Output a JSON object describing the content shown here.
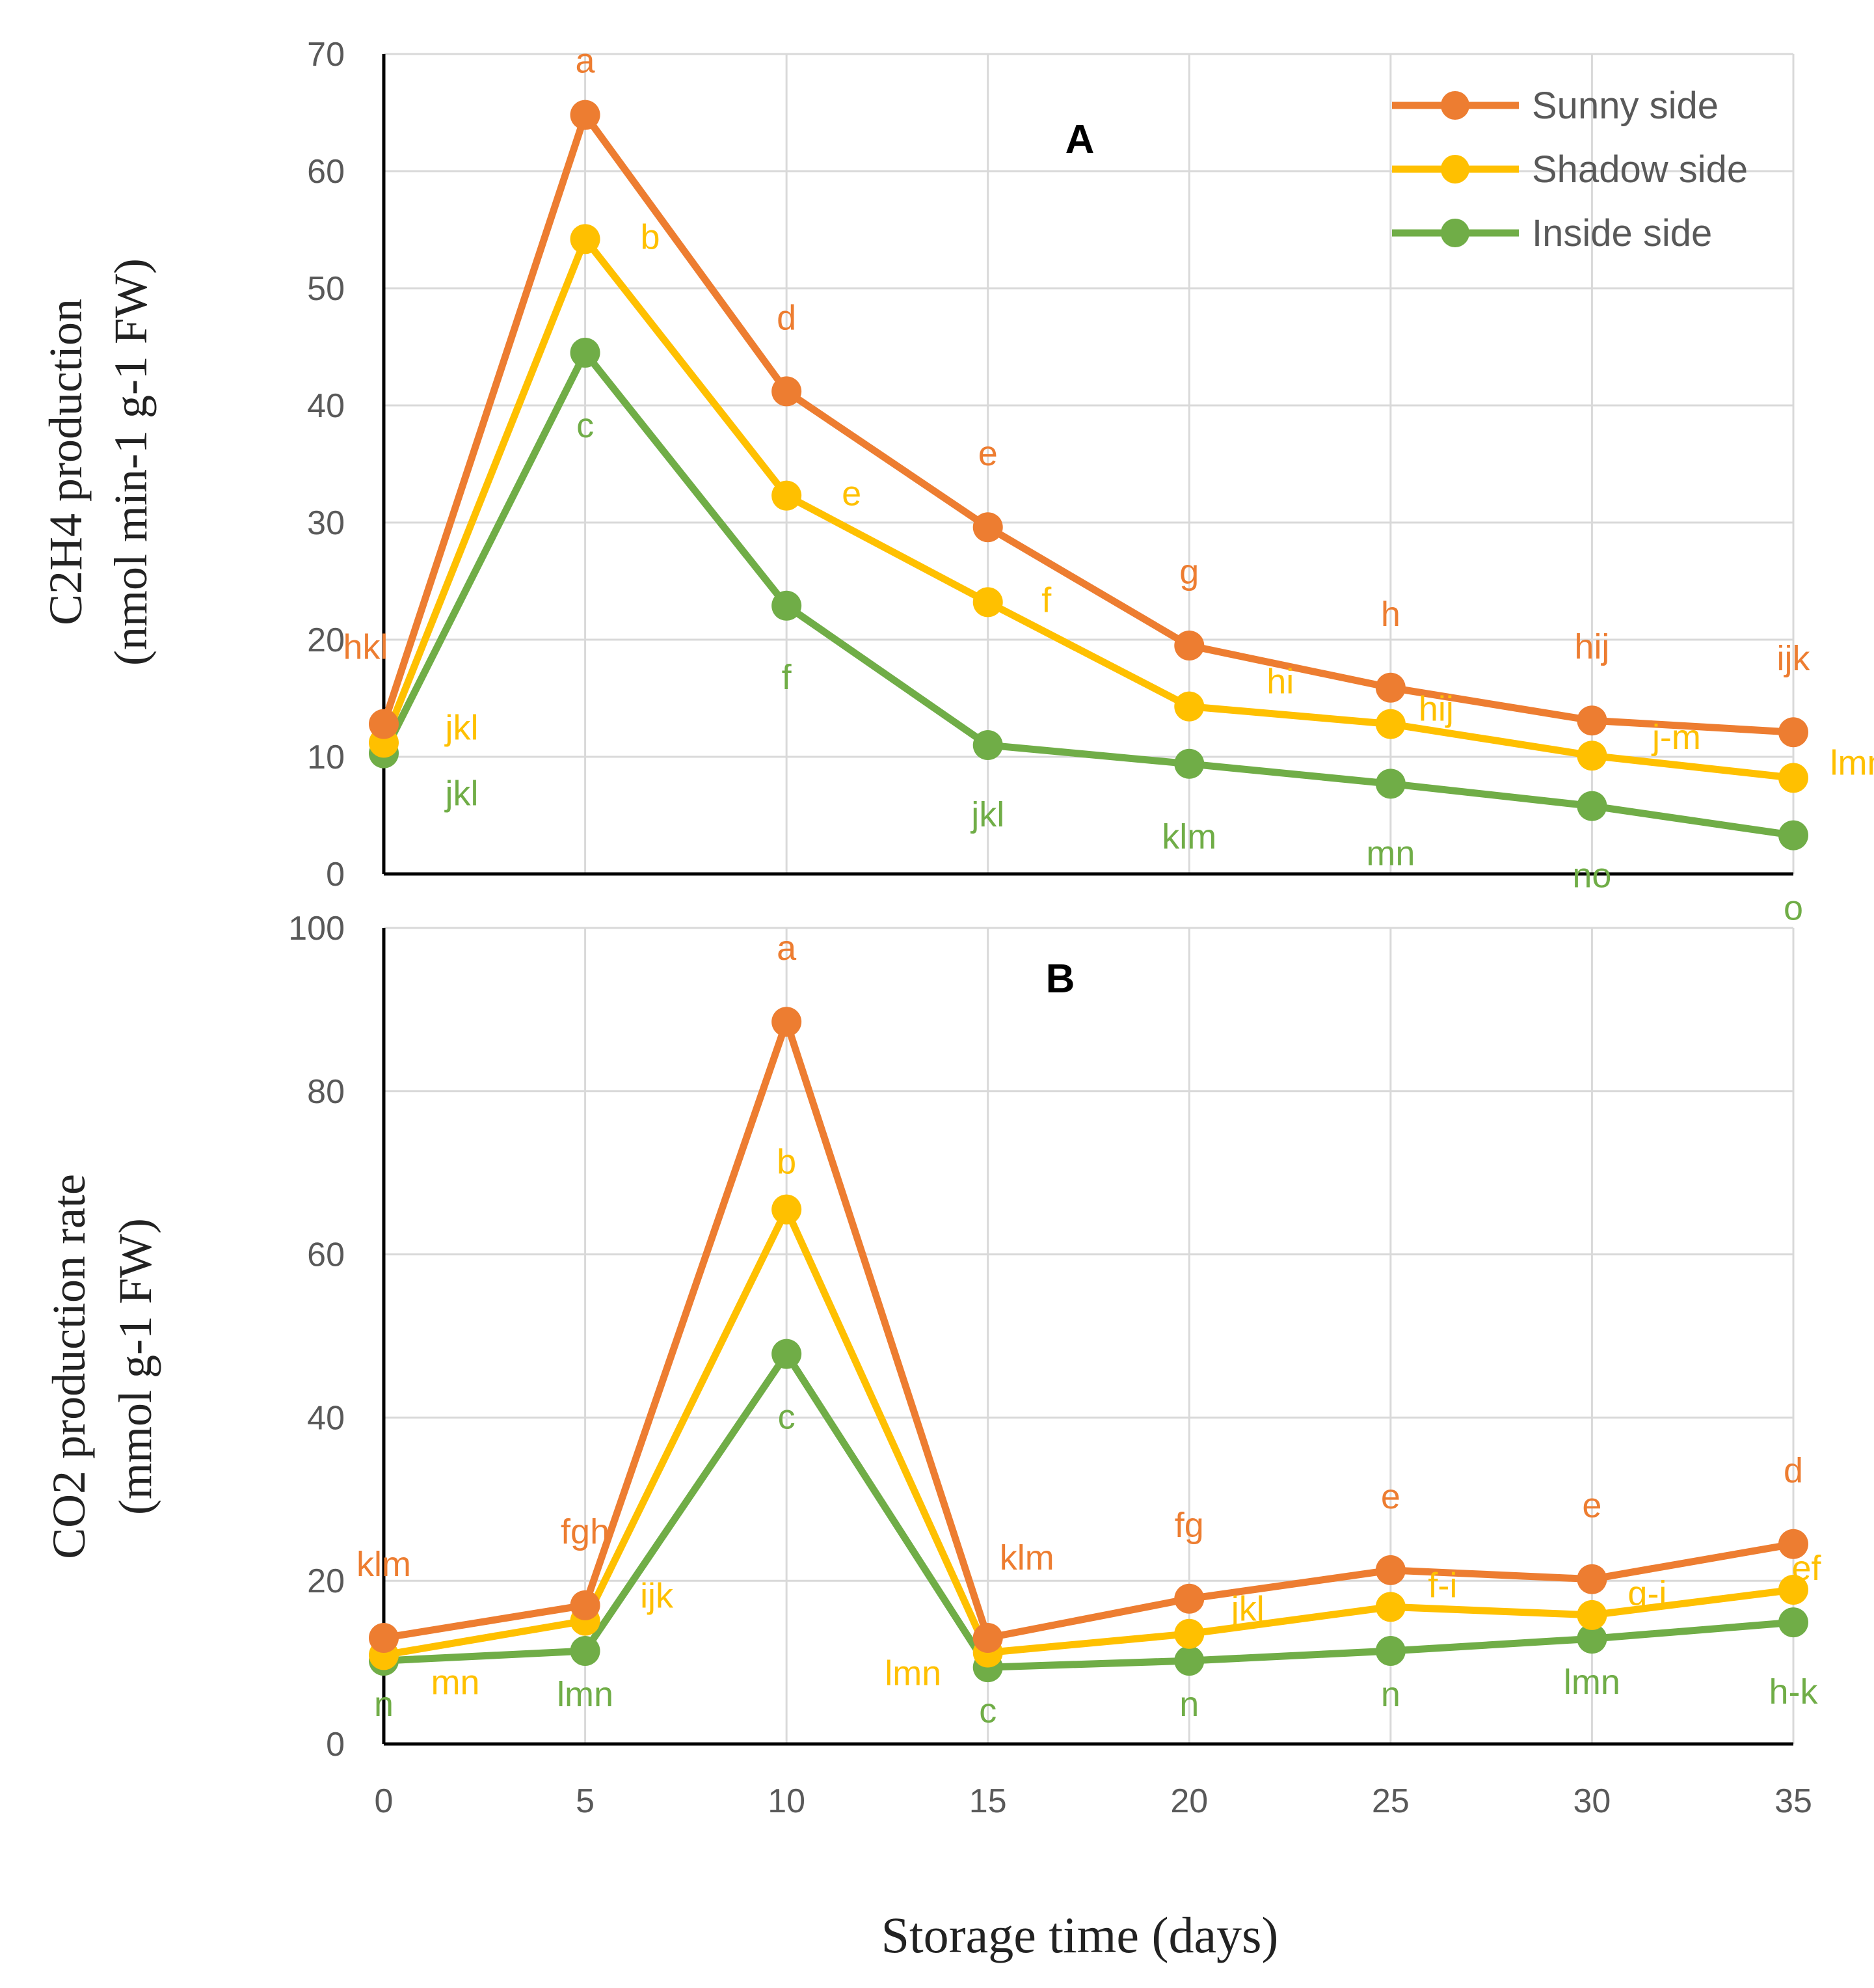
{
  "chart_data": [
    {
      "panel": "A",
      "type": "line",
      "title": "A",
      "ylabel_line1": "C2H4 production",
      "ylabel_line2": "(nmol min-1 g-1 FW)",
      "xlabel": "Storage time (days)",
      "x": [
        0,
        5,
        10,
        15,
        20,
        25,
        30,
        35
      ],
      "ylim": [
        0,
        70
      ],
      "yticks": [
        0,
        10,
        20,
        30,
        40,
        50,
        60,
        70
      ],
      "xticks": [
        0,
        5,
        10,
        15,
        20,
        25,
        30,
        35
      ],
      "grid": true,
      "legend_position": "top-right",
      "series": [
        {
          "name": "Sunny side",
          "color": "#ED7D31",
          "values": [
            12.8,
            64.8,
            41.2,
            29.6,
            19.5,
            15.9,
            13.1,
            12.1
          ],
          "labels": [
            "hkl",
            "a",
            "d",
            "e",
            "g",
            "h",
            "hij",
            "ijk"
          ]
        },
        {
          "name": "Shadow side",
          "color": "#FFC000",
          "values": [
            11.2,
            54.2,
            32.3,
            23.2,
            14.3,
            12.8,
            10.1,
            8.2
          ],
          "labels": [
            "jkl",
            "b",
            "e",
            "f",
            "hi",
            "hij",
            "j-m",
            "lmn"
          ]
        },
        {
          "name": "Inside side",
          "color": "#70AD47",
          "values": [
            10.3,
            44.5,
            22.9,
            11.0,
            9.4,
            7.7,
            5.8,
            3.3
          ],
          "labels": [
            "jkl",
            "c",
            "f",
            "jkl",
            "klm",
            "mn",
            "no",
            "o"
          ]
        }
      ]
    },
    {
      "panel": "B",
      "type": "line",
      "title": "B",
      "ylabel_line1": "CO2 production rate",
      "ylabel_line2": "(mmol g-1 FW)",
      "xlabel": "Storage time (days)",
      "x": [
        0,
        5,
        10,
        15,
        20,
        25,
        30,
        35
      ],
      "ylim": [
        0,
        100
      ],
      "yticks": [
        0,
        20,
        40,
        60,
        80,
        100
      ],
      "xticks": [
        0,
        5,
        10,
        15,
        20,
        25,
        30,
        35
      ],
      "grid": true,
      "series": [
        {
          "name": "Sunny side",
          "color": "#ED7D31",
          "values": [
            13,
            17,
            88.5,
            13,
            17.8,
            21.3,
            20.2,
            24.5
          ],
          "labels": [
            "klm",
            "fgh",
            "a",
            "klm",
            "fg",
            "e",
            "e",
            "d"
          ]
        },
        {
          "name": "Shadow side",
          "color": "#FFC000",
          "values": [
            10.9,
            15.1,
            65.5,
            11.2,
            13.5,
            16.8,
            15.8,
            18.9
          ],
          "labels": [
            "mn",
            "ijk",
            "b",
            "lmn",
            "jkl",
            "f-i",
            "g-i",
            "ef"
          ]
        },
        {
          "name": "Inside side",
          "color": "#70AD47",
          "values": [
            10.2,
            11.4,
            47.8,
            9.4,
            10.2,
            11.4,
            12.9,
            14.9
          ],
          "labels": [
            "n",
            "lmn",
            "c",
            "c",
            "n",
            "n",
            "lmn",
            "h-k"
          ]
        }
      ]
    }
  ]
}
